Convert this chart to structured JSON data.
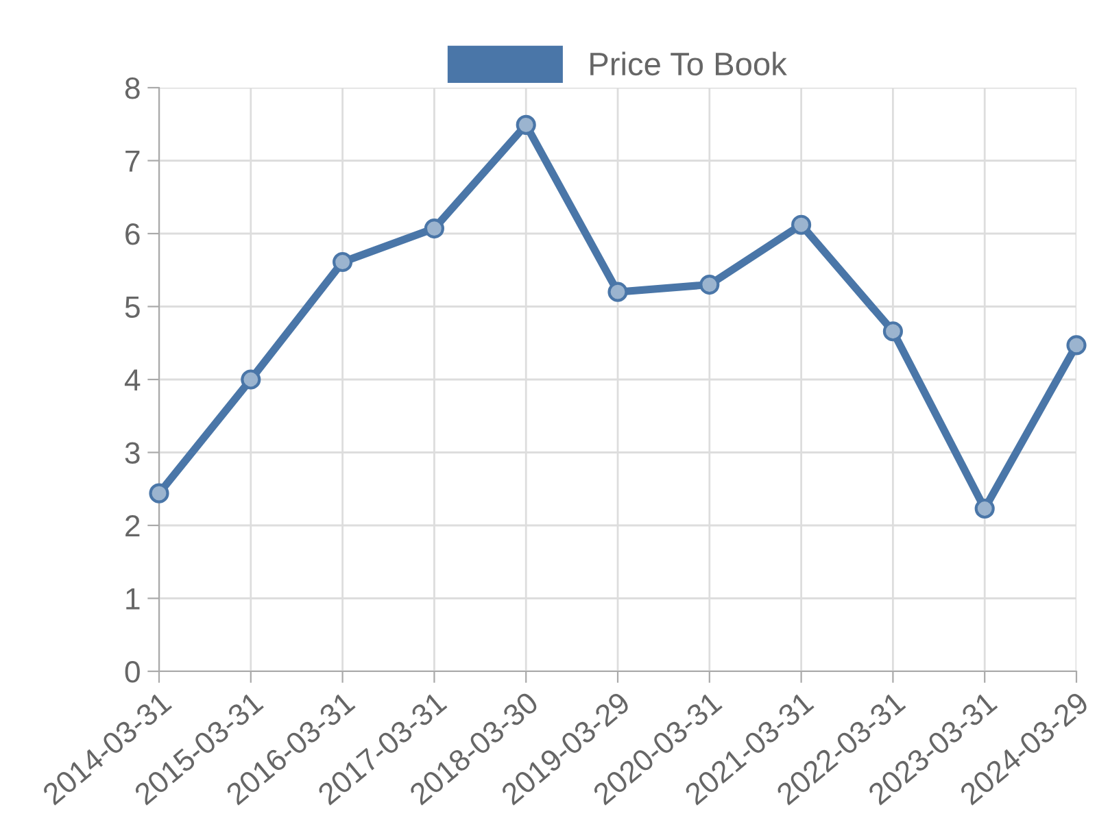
{
  "chart_data": {
    "type": "line",
    "categories": [
      "2014-03-31",
      "2015-03-31",
      "2016-03-31",
      "2017-03-31",
      "2018-03-30",
      "2019-03-29",
      "2020-03-31",
      "2021-03-31",
      "2022-03-31",
      "2023-03-31",
      "2024-03-29"
    ],
    "series": [
      {
        "name": "Price To Book",
        "color": "#4a76a8",
        "values": [
          2.44,
          4.0,
          5.61,
          6.07,
          7.49,
          5.2,
          5.3,
          6.12,
          4.66,
          2.23,
          4.47
        ]
      }
    ],
    "ylim": [
      0,
      8
    ],
    "yticks": [
      0,
      1,
      2,
      3,
      4,
      5,
      6,
      7,
      8
    ],
    "grid": true,
    "legend": "top",
    "marker": "circle",
    "line_style": "solid"
  }
}
